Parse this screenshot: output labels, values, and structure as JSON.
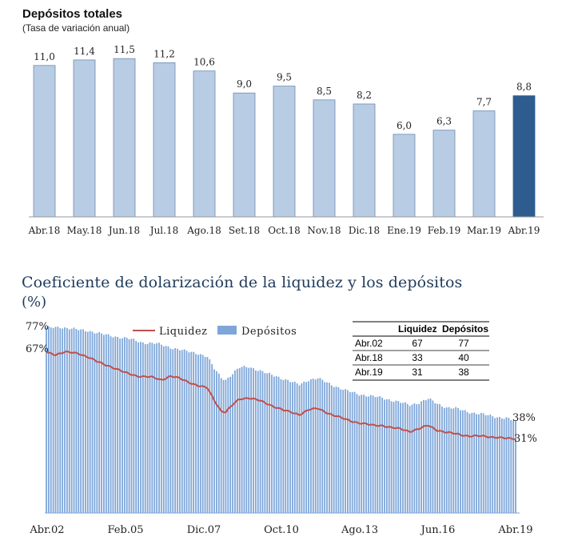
{
  "chart_data": [
    {
      "type": "bar",
      "title": "Depósitos totales",
      "subtitle": "(Tasa de variación anual)",
      "categories": [
        "Abr.18",
        "May.18",
        "Jun.18",
        "Jul.18",
        "Ago.18",
        "Set.18",
        "Oct.18",
        "Nov.18",
        "Dic.18",
        "Ene.19",
        "Feb.19",
        "Mar.19",
        "Abr.19"
      ],
      "values": [
        11.0,
        11.4,
        11.5,
        11.2,
        10.6,
        9.0,
        9.5,
        8.5,
        8.2,
        6.0,
        6.3,
        7.7,
        8.8
      ],
      "value_labels": [
        "11,0",
        "11,4",
        "11,5",
        "11,2",
        "10,6",
        "9,0",
        "9,5",
        "8,5",
        "8,2",
        "6,0",
        "6,3",
        "7,7",
        "8,8"
      ],
      "highlight_index": 12,
      "ylim": [
        0,
        12.6
      ],
      "colors": {
        "bar": "#b8cce4",
        "highlight": "#2f5c8e",
        "bar_stroke": "#6d8cb4"
      }
    },
    {
      "type": "bar+line",
      "title": "Coeficiente de dolarización de la liquidez y los depósitos",
      "subtitle": "(%)",
      "legend": [
        {
          "name": "Liquidez",
          "color": "#c0504d"
        },
        {
          "name": "Depósitos",
          "color": "#7ea6d9"
        }
      ],
      "x_ticks": [
        "Abr.02",
        "Feb.05",
        "Dic.07",
        "Oct.10",
        "Ago.13",
        "Jun.16",
        "Abr.19"
      ],
      "ylim": [
        0,
        82
      ],
      "series": [
        {
          "name": "Depósitos",
          "kind": "bar",
          "months": 205,
          "anchors": [
            [
              0,
              77
            ],
            [
              6,
              77.5
            ],
            [
              12,
              76.5
            ],
            [
              18,
              76
            ],
            [
              24,
              74.5
            ],
            [
              30,
              73.5
            ],
            [
              36,
              72.5
            ],
            [
              42,
              71
            ],
            [
              48,
              70.5
            ],
            [
              54,
              69
            ],
            [
              60,
              67.5
            ],
            [
              66,
              66.5
            ],
            [
              70,
              65
            ],
            [
              73,
              60
            ],
            [
              76,
              56.5
            ],
            [
              78,
              55.5
            ],
            [
              81,
              58
            ],
            [
              84,
              60.5
            ],
            [
              88,
              61
            ],
            [
              92,
              59.5
            ],
            [
              96,
              58
            ],
            [
              100,
              57
            ],
            [
              104,
              55.5
            ],
            [
              108,
              54
            ],
            [
              110,
              53.5
            ],
            [
              114,
              55.5
            ],
            [
              118,
              56
            ],
            [
              124,
              53.5
            ],
            [
              130,
              51
            ],
            [
              136,
              49.5
            ],
            [
              142,
              48.5
            ],
            [
              146,
              48
            ],
            [
              150,
              47
            ],
            [
              154,
              46
            ],
            [
              158,
              45
            ],
            [
              162,
              46
            ],
            [
              166,
              47.5
            ],
            [
              170,
              45.5
            ],
            [
              174,
              44
            ],
            [
              178,
              43.5
            ],
            [
              184,
              42
            ],
            [
              190,
              41
            ],
            [
              196,
              40
            ],
            [
              200,
              39.5
            ],
            [
              204,
              38
            ]
          ]
        },
        {
          "name": "Liquidez",
          "kind": "line",
          "months": 205,
          "anchors": [
            [
              0,
              67
            ],
            [
              4,
              66
            ],
            [
              8,
              67
            ],
            [
              14,
              66.5
            ],
            [
              18,
              65
            ],
            [
              22,
              63
            ],
            [
              28,
              61
            ],
            [
              34,
              58.5
            ],
            [
              40,
              57
            ],
            [
              46,
              56.5
            ],
            [
              50,
              55.5
            ],
            [
              54,
              57
            ],
            [
              58,
              56
            ],
            [
              62,
              54.5
            ],
            [
              66,
              53
            ],
            [
              70,
              52
            ],
            [
              73,
              47
            ],
            [
              76,
              42.5
            ],
            [
              78,
              42
            ],
            [
              81,
              45
            ],
            [
              84,
              47.5
            ],
            [
              88,
              48
            ],
            [
              92,
              47
            ],
            [
              96,
              45.5
            ],
            [
              100,
              44
            ],
            [
              104,
              42.5
            ],
            [
              108,
              41.5
            ],
            [
              110,
              41
            ],
            [
              114,
              43
            ],
            [
              118,
              43.5
            ],
            [
              124,
              41
            ],
            [
              130,
              39
            ],
            [
              136,
              37.5
            ],
            [
              142,
              36.5
            ],
            [
              146,
              36.5
            ],
            [
              150,
              35.5
            ],
            [
              154,
              35
            ],
            [
              158,
              34
            ],
            [
              162,
              35
            ],
            [
              166,
              36.5
            ],
            [
              170,
              34.5
            ],
            [
              174,
              33.5
            ],
            [
              178,
              33
            ],
            [
              184,
              32
            ],
            [
              190,
              32
            ],
            [
              196,
              31.5
            ],
            [
              200,
              31
            ],
            [
              204,
              31
            ]
          ]
        }
      ],
      "annotations": {
        "depositos_start": "77%",
        "liquidez_start": "67%",
        "depositos_end": "38%",
        "liquidez_end": "31%"
      },
      "table": {
        "headers": [
          "",
          "Liquidez",
          "Depósitos"
        ],
        "rows": [
          [
            "Abr.02",
            "67",
            "77"
          ],
          [
            "Abr.18",
            "33",
            "40"
          ],
          [
            "Abr.19",
            "31",
            "38"
          ]
        ]
      }
    }
  ]
}
